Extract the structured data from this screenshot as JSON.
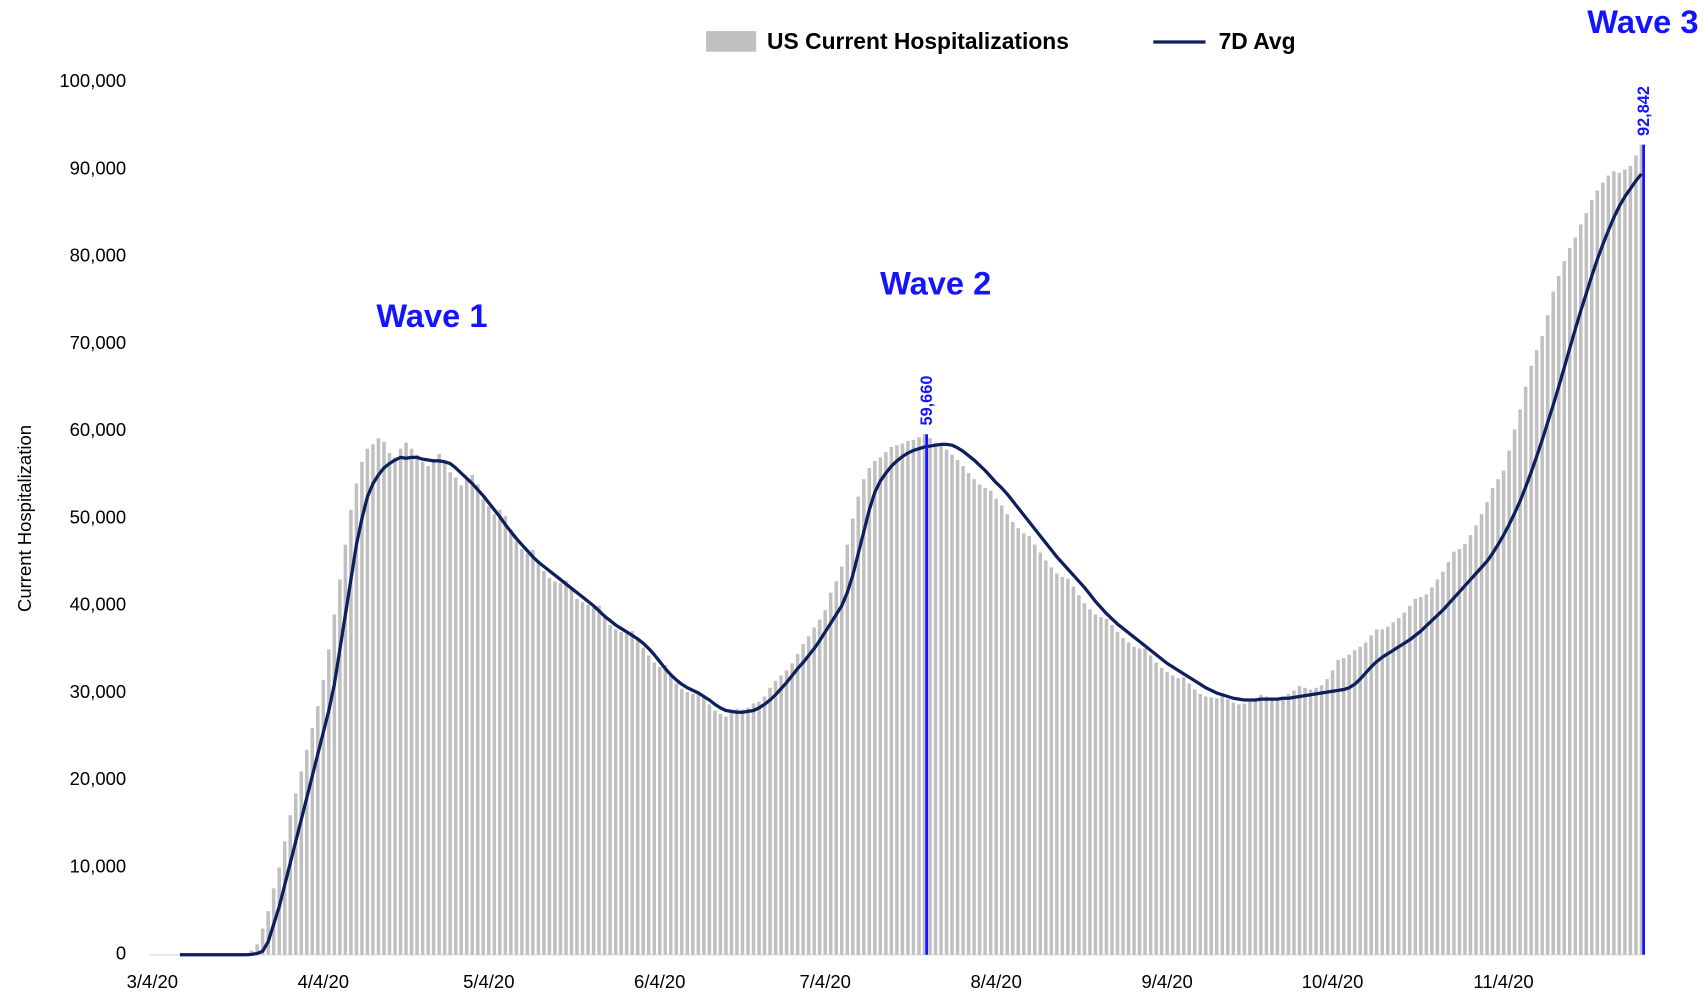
{
  "chart_data": {
    "type": "bar",
    "y_label": "Current Hospitalization",
    "annotations": [
      "Wave 1",
      "Wave 2",
      "Wave 3"
    ],
    "annotation_color": "#1414ff",
    "ylim": [
      0,
      100000
    ],
    "yticks": [
      0,
      {
        "value": 10000,
        "label": "10,000"
      },
      {
        "value": 20000,
        "label": "20,000"
      },
      {
        "value": 30000,
        "label": "30,000"
      },
      {
        "value": 40000,
        "label": "40,000"
      },
      {
        "value": 50000,
        "label": "50,000"
      },
      {
        "value": 60000,
        "label": "60,000"
      },
      {
        "value": 70000,
        "label": "70,000"
      },
      {
        "value": 80000,
        "label": "80,000"
      },
      {
        "value": 90000,
        "label": "90,000"
      },
      {
        "value": 100000,
        "label": "100,000"
      }
    ],
    "categories": [
      "3/4/20",
      null,
      null,
      null,
      null,
      null,
      null,
      null,
      null,
      null,
      null,
      null,
      null,
      null,
      null,
      null,
      null,
      null,
      null,
      null,
      null,
      null,
      null,
      null,
      null,
      null,
      null,
      null,
      null,
      null,
      null,
      "4/4/20",
      null,
      null,
      null,
      null,
      null,
      null,
      null,
      null,
      null,
      null,
      null,
      null,
      null,
      null,
      null,
      null,
      null,
      null,
      null,
      null,
      null,
      null,
      null,
      null,
      null,
      null,
      null,
      null,
      null,
      "5/4/20",
      null,
      null,
      null,
      null,
      null,
      null,
      null,
      null,
      null,
      null,
      null,
      null,
      null,
      null,
      null,
      null,
      null,
      null,
      null,
      null,
      null,
      null,
      null,
      null,
      null,
      null,
      null,
      null,
      null,
      null,
      "6/4/20",
      null,
      null,
      null,
      null,
      null,
      null,
      null,
      null,
      null,
      null,
      null,
      null,
      null,
      null,
      null,
      null,
      null,
      null,
      null,
      null,
      null,
      null,
      null,
      null,
      null,
      null,
      null,
      null,
      null,
      "7/4/20",
      null,
      null,
      null,
      null,
      null,
      null,
      null,
      null,
      null,
      null,
      null,
      null,
      null,
      null,
      null,
      null,
      null,
      null,
      null,
      null,
      null,
      null,
      null,
      null,
      null,
      null,
      null,
      null,
      null,
      null,
      "8/4/20",
      null,
      null,
      null,
      null,
      null,
      null,
      null,
      null,
      null,
      null,
      null,
      null,
      null,
      null,
      null,
      null,
      null,
      null,
      null,
      null,
      null,
      null,
      null,
      null,
      null,
      null,
      null,
      null,
      null,
      null,
      "9/4/20",
      null,
      null,
      null,
      null,
      null,
      null,
      null,
      null,
      null,
      null,
      null,
      null,
      null,
      null,
      null,
      null,
      null,
      null,
      null,
      null,
      null,
      null,
      null,
      null,
      null,
      null,
      null,
      null,
      null,
      "10/4/20",
      null,
      null,
      null,
      null,
      null,
      null,
      null,
      null,
      null,
      null,
      null,
      null,
      null,
      null,
      null,
      null,
      null,
      null,
      null,
      null,
      null,
      null,
      null,
      null,
      null,
      null,
      null,
      null,
      null,
      null,
      "11/4/20",
      null,
      null,
      null,
      null,
      null,
      null,
      null,
      null,
      null,
      null,
      null,
      null,
      null,
      null,
      null,
      null,
      null,
      null,
      null,
      null,
      null,
      null,
      null,
      null,
      null
    ],
    "series": [
      {
        "name": "US Current Hospitalizations",
        "type": "bar",
        "color": "#c0c0c0",
        "values": [
          0,
          0,
          0,
          0,
          0,
          0,
          0,
          0,
          0,
          0,
          0,
          0,
          0,
          0,
          0,
          0,
          0,
          43,
          485,
          1200,
          3000,
          5000,
          7617,
          10000,
          13000,
          16000,
          18500,
          21000,
          23500,
          26000,
          28500,
          31500,
          35000,
          39000,
          43000,
          47000,
          51000,
          54000,
          56500,
          58000,
          58500,
          59200,
          58800,
          57500,
          57000,
          58000,
          58700,
          58000,
          57300,
          56500,
          56000,
          56800,
          57400,
          56600,
          55300,
          54700,
          53800,
          54600,
          55000,
          53900,
          52200,
          51400,
          50500,
          51000,
          50300,
          48800,
          47400,
          46500,
          46000,
          46400,
          45200,
          44000,
          43200,
          42800,
          42600,
          42900,
          41900,
          40800,
          40400,
          40100,
          39800,
          40000,
          39000,
          37800,
          37300,
          37000,
          36800,
          37100,
          36200,
          35200,
          34300,
          33500,
          33000,
          33200,
          32200,
          31100,
          30500,
          30100,
          29900,
          30200,
          29500,
          28700,
          28000,
          27600,
          27300,
          27900,
          28200,
          28100,
          28300,
          28800,
          29000,
          29600,
          30600,
          31400,
          32000,
          32600,
          33400,
          34500,
          35600,
          36500,
          37500,
          38400,
          39500,
          41500,
          42800,
          44500,
          47000,
          50000,
          52500,
          54500,
          55800,
          56600,
          57000,
          57600,
          58200,
          58400,
          58600,
          58900,
          59000,
          59300,
          59660,
          59200,
          58700,
          58400,
          57900,
          57300,
          56700,
          56000,
          55200,
          54500,
          53900,
          53500,
          53200,
          52300,
          51500,
          50500,
          49600,
          48900,
          48300,
          48000,
          47000,
          46100,
          45200,
          44400,
          43700,
          43300,
          43100,
          42200,
          41200,
          40300,
          39600,
          39000,
          38700,
          38500,
          37800,
          37000,
          36300,
          35800,
          35300,
          35100,
          35100,
          34300,
          33500,
          32900,
          32400,
          32000,
          31700,
          31800,
          31100,
          30400,
          29900,
          29600,
          29500,
          29400,
          29700,
          29300,
          28900,
          28700,
          28800,
          29000,
          29300,
          29800,
          29600,
          29300,
          29300,
          29500,
          29900,
          30300,
          30800,
          30600,
          30400,
          30600,
          30900,
          31600,
          32600,
          33800,
          34000,
          34400,
          34900,
          35300,
          35800,
          36600,
          37300,
          37300,
          37600,
          38100,
          38600,
          39200,
          40000,
          40800,
          41000,
          41300,
          42100,
          43000,
          43900,
          45000,
          46200,
          46500,
          47100,
          48100,
          49200,
          50500,
          51900,
          53500,
          54500,
          55500,
          57800,
          60200,
          62500,
          65100,
          67500,
          69300,
          70900,
          73300,
          76000,
          77800,
          79500,
          81000,
          82200,
          83700,
          85000,
          86500,
          87600,
          88500,
          89300,
          89800,
          89600,
          90000,
          90400,
          91600,
          92842
        ],
        "value_labels": [
          null,
          null,
          null,
          null,
          null,
          null,
          null,
          null,
          null,
          null,
          null,
          null,
          null,
          null,
          null,
          null,
          null,
          null,
          null,
          null,
          null,
          null,
          null,
          null,
          null,
          null,
          null,
          null,
          null,
          null,
          null,
          null,
          null,
          null,
          null,
          null,
          null,
          null,
          null,
          null,
          null,
          null,
          null,
          null,
          null,
          null,
          null,
          null,
          null,
          null,
          null,
          null,
          null,
          null,
          null,
          null,
          null,
          null,
          null,
          null,
          null,
          null,
          null,
          null,
          null,
          null,
          null,
          null,
          null,
          null,
          null,
          null,
          null,
          null,
          null,
          null,
          null,
          null,
          null,
          null,
          null,
          null,
          null,
          null,
          null,
          null,
          null,
          null,
          null,
          null,
          null,
          null,
          null,
          null,
          null,
          null,
          null,
          null,
          null,
          null,
          null,
          null,
          null,
          null,
          null,
          null,
          null,
          null,
          null,
          null,
          null,
          null,
          null,
          null,
          null,
          null,
          null,
          null,
          null,
          null,
          null,
          null,
          null,
          null,
          null,
          null,
          null,
          null,
          null,
          null,
          null,
          null,
          null,
          null,
          null,
          null,
          null,
          null,
          null,
          null,
          "59,660",
          null,
          null,
          null,
          null,
          null,
          null,
          null,
          null,
          null,
          null,
          null,
          null,
          null,
          null,
          null,
          null,
          null,
          null,
          null,
          null,
          null,
          null,
          null,
          null,
          null,
          null,
          null,
          null,
          null,
          null,
          null,
          null,
          null,
          null,
          null,
          null,
          null,
          null,
          null,
          null,
          null,
          null,
          null,
          null,
          null,
          null,
          null,
          null,
          null,
          null,
          null,
          null,
          null,
          null,
          null,
          null,
          null,
          null,
          null,
          null,
          null,
          null,
          null,
          null,
          null,
          null,
          null,
          null,
          null,
          null,
          null,
          null,
          null,
          null,
          null,
          null,
          null,
          null,
          null,
          null,
          null,
          null,
          null,
          null,
          null,
          null,
          null,
          null,
          null,
          null,
          null,
          null,
          null,
          null,
          null,
          null,
          null,
          null,
          null,
          null,
          null,
          null,
          null,
          null,
          null,
          null,
          null,
          null,
          null,
          null,
          null,
          null,
          null,
          null,
          null,
          null,
          null,
          null,
          null,
          null,
          null,
          null,
          null,
          null,
          null,
          null,
          null,
          null,
          null,
          "92,842"
        ]
      },
      {
        "name": "7D Avg",
        "type": "line",
        "color": "#0d1f5c",
        "values": [
          null,
          null,
          null,
          null,
          null,
          0,
          0,
          0,
          0,
          0,
          0,
          0,
          0,
          0,
          0,
          0,
          0,
          0,
          50,
          150,
          400,
          1500,
          3500,
          5500,
          8000,
          10500,
          13000,
          15500,
          18000,
          20500,
          23000,
          25500,
          28000,
          31000,
          35000,
          39000,
          43000,
          47000,
          50000,
          52500,
          54000,
          55000,
          55800,
          56300,
          56700,
          57000,
          56900,
          57000,
          57000,
          56800,
          56700,
          56600,
          56600,
          56500,
          56300,
          55800,
          55200,
          54600,
          54000,
          53300,
          52600,
          51800,
          51000,
          50200,
          49300,
          48500,
          47700,
          47000,
          46300,
          45600,
          45000,
          44500,
          44000,
          43500,
          43000,
          42500,
          42000,
          41500,
          41000,
          40500,
          40000,
          39400,
          38800,
          38300,
          37800,
          37400,
          37000,
          36600,
          36200,
          35700,
          35100,
          34400,
          33600,
          32800,
          32100,
          31500,
          31000,
          30600,
          30300,
          30000,
          29600,
          29200,
          28700,
          28300,
          28000,
          27900,
          27800,
          27800,
          27900,
          28000,
          28300,
          28700,
          29200,
          29800,
          30500,
          31200,
          32000,
          32800,
          33500,
          34300,
          35100,
          36000,
          37000,
          38000,
          39000,
          40000,
          41500,
          43500,
          46000,
          48500,
          51000,
          53000,
          54300,
          55200,
          56000,
          56600,
          57100,
          57500,
          57800,
          58000,
          58200,
          58300,
          58400,
          58500,
          58500,
          58400,
          58100,
          57700,
          57200,
          56700,
          56100,
          55500,
          54800,
          54100,
          53500,
          52800,
          52000,
          51200,
          50400,
          49600,
          48800,
          48000,
          47200,
          46400,
          45600,
          44900,
          44200,
          43500,
          42800,
          42100,
          41300,
          40500,
          39800,
          39100,
          38500,
          37900,
          37400,
          36900,
          36400,
          35900,
          35400,
          34900,
          34400,
          33900,
          33400,
          33000,
          32600,
          32200,
          31800,
          31400,
          31000,
          30600,
          30300,
          30000,
          29800,
          29600,
          29400,
          29300,
          29200,
          29200,
          29200,
          29300,
          29300,
          29300,
          29300,
          29400,
          29400,
          29500,
          29600,
          29700,
          29800,
          29900,
          30000,
          30100,
          30200,
          30300,
          30400,
          30600,
          31000,
          31600,
          32300,
          33000,
          33600,
          34100,
          34500,
          34900,
          35300,
          35700,
          36100,
          36600,
          37100,
          37700,
          38300,
          38900,
          39500,
          40200,
          40900,
          41600,
          42300,
          43000,
          43700,
          44400,
          45100,
          46000,
          47000,
          48100,
          49300,
          50600,
          52000,
          53600,
          55300,
          57100,
          59000,
          61000,
          63000,
          65100,
          67300,
          69500,
          71700,
          73800,
          75800,
          77800,
          79700,
          81400,
          83000,
          84500,
          85800,
          86900,
          87800,
          88700,
          89500
        ]
      }
    ]
  }
}
